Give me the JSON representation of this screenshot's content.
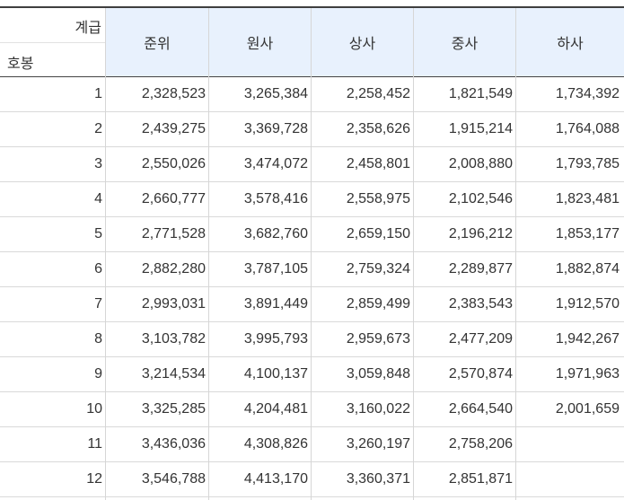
{
  "header": {
    "corner_top": "계급",
    "corner_bottom": "호봉",
    "columns": [
      "준위",
      "원사",
      "상사",
      "중사",
      "하사"
    ]
  },
  "rows": [
    {
      "step": "1",
      "values": [
        "2,328,523",
        "3,265,384",
        "2,258,452",
        "1,821,549",
        "1,734,392"
      ]
    },
    {
      "step": "2",
      "values": [
        "2,439,275",
        "3,369,728",
        "2,358,626",
        "1,915,214",
        "1,764,088"
      ]
    },
    {
      "step": "3",
      "values": [
        "2,550,026",
        "3,474,072",
        "2,458,801",
        "2,008,880",
        "1,793,785"
      ]
    },
    {
      "step": "4",
      "values": [
        "2,660,777",
        "3,578,416",
        "2,558,975",
        "2,102,546",
        "1,823,481"
      ]
    },
    {
      "step": "5",
      "values": [
        "2,771,528",
        "3,682,760",
        "2,659,150",
        "2,196,212",
        "1,853,177"
      ]
    },
    {
      "step": "6",
      "values": [
        "2,882,280",
        "3,787,105",
        "2,759,324",
        "2,289,877",
        "1,882,874"
      ]
    },
    {
      "step": "7",
      "values": [
        "2,993,031",
        "3,891,449",
        "2,859,499",
        "2,383,543",
        "1,912,570"
      ]
    },
    {
      "step": "8",
      "values": [
        "3,103,782",
        "3,995,793",
        "2,959,673",
        "2,477,209",
        "1,942,267"
      ]
    },
    {
      "step": "9",
      "values": [
        "3,214,534",
        "4,100,137",
        "3,059,848",
        "2,570,874",
        "1,971,963"
      ]
    },
    {
      "step": "10",
      "values": [
        "3,325,285",
        "4,204,481",
        "3,160,022",
        "2,664,540",
        "2,001,659"
      ]
    },
    {
      "step": "11",
      "values": [
        "3,436,036",
        "4,308,826",
        "3,260,197",
        "2,758,206",
        ""
      ]
    },
    {
      "step": "12",
      "values": [
        "3,546,788",
        "4,413,170",
        "3,360,371",
        "2,851,871",
        ""
      ]
    }
  ]
}
